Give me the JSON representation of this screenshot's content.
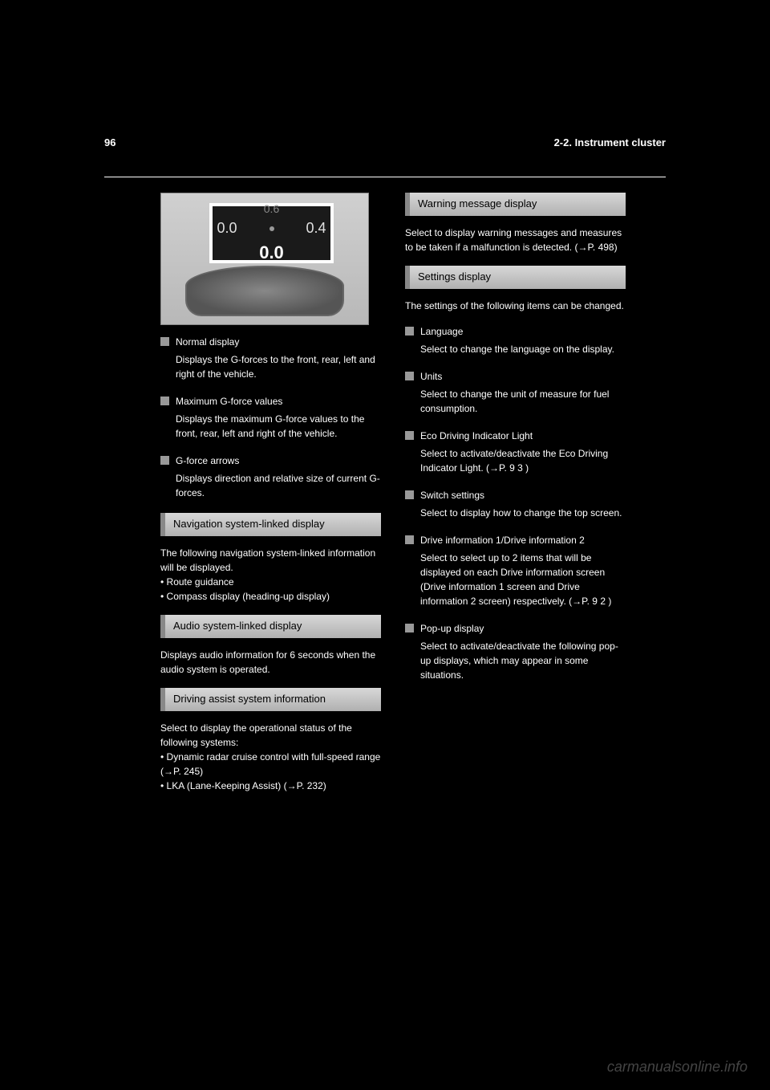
{
  "header": {
    "page_number": "96",
    "section": "2-2. Instrument cluster"
  },
  "left_column": {
    "dashboard": {
      "top_value": "0.6",
      "left_value": "0.0",
      "right_value": "0.4",
      "bottom_value": "0.0"
    },
    "bullets": [
      {
        "title": "Normal display",
        "body": "Displays the G-forces to the front, rear, left and right of the vehicle."
      },
      {
        "title": "Maximum G-force values",
        "body": "Displays the maximum G-force values to the front, rear, left and right of the vehicle."
      },
      {
        "title": "G-force arrows",
        "body": "Displays direction and relative size of current G-forces."
      }
    ],
    "subheadings": [
      {
        "title": "Navigation system-linked display",
        "body": "The following navigation system-linked information will be displayed.\n• Route guidance\n• Compass display (heading-up display)"
      },
      {
        "title": "Audio system-linked display",
        "body": "Displays audio information for 6 seconds when the audio system is operated."
      },
      {
        "title": "Driving assist system information",
        "body": "Select to display the operational status of the following systems:\n• Dynamic radar cruise control with full-speed range (→P. 245)\n• LKA (Lane-Keeping Assist) (→P. 232)"
      }
    ]
  },
  "right_column": {
    "subheadings": [
      {
        "title": "Warning message display",
        "body": "Select to display warning messages and measures to be taken if a malfunction is detected. (→P. 498)"
      },
      {
        "title": "Settings display",
        "body_intro": "The settings of the following items can be changed."
      }
    ],
    "settings_bullets": [
      {
        "title": "Language",
        "body": "Select to change the language on the display."
      },
      {
        "title": "Units",
        "body": "Select to change the unit of measure for fuel consumption."
      },
      {
        "title": "Eco Driving Indicator Light",
        "body": "Select to activate/deactivate the Eco Driving Indicator Light. (→P. 9 3 )"
      },
      {
        "title": "Switch settings",
        "body": "Select to display how to change the top screen."
      },
      {
        "title": "Drive information 1/Drive information 2",
        "body": "Select to select up to 2 items that will be displayed on each Drive information screen (Drive information 1 screen and Drive information 2 screen) respectively. (→P. 9 2 )"
      },
      {
        "title": "Pop-up display",
        "body": "Select to activate/deactivate the following pop-up displays, which may appear in some situations."
      }
    ]
  },
  "watermark": "carmanualsonline.info"
}
